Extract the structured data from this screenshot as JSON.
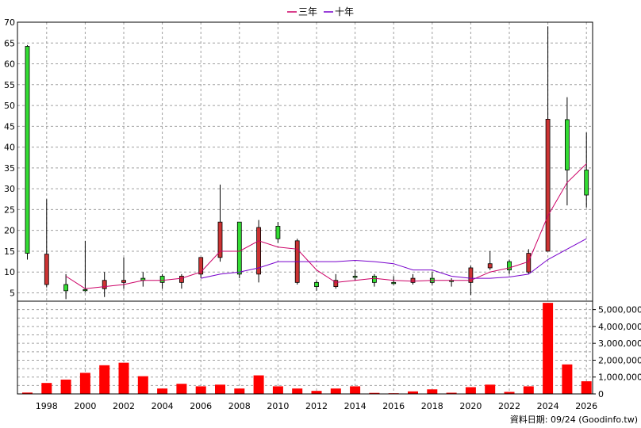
{
  "legend": [
    {
      "label": "三年",
      "color": "#cc0066"
    },
    {
      "label": "十年",
      "color": "#7700cc"
    }
  ],
  "credit": "資料日期: 09/24  (Goodinfo.tw)",
  "chart_data": [
    {
      "type": "candlestick",
      "ylim": [
        3,
        70
      ],
      "y_ticks": [
        5,
        10,
        15,
        20,
        25,
        30,
        35,
        40,
        45,
        50,
        55,
        60,
        65,
        70
      ],
      "grid": true,
      "legend_position": "top-center",
      "x_ticks": [
        1998,
        2000,
        2002,
        2004,
        2006,
        2008,
        2010,
        2012,
        2014,
        2016,
        2018,
        2020,
        2022,
        2024,
        2026
      ],
      "candles": [
        {
          "year": 1997,
          "open": 14.5,
          "close": 64.2,
          "high": 64.5,
          "low": 13.0
        },
        {
          "year": 1998,
          "open": 14.3,
          "close": 7.0,
          "high": 27.5,
          "low": 6.3
        },
        {
          "year": 1999,
          "open": 5.5,
          "close": 7.0,
          "high": 9.5,
          "low": 3.5
        },
        {
          "year": 2000,
          "open": 5.8,
          "close": 5.8,
          "high": 17.5,
          "low": 5.2
        },
        {
          "year": 2001,
          "open": 8.0,
          "close": 6.0,
          "high": 10.0,
          "low": 4.0
        },
        {
          "year": 2002,
          "open": 8.0,
          "close": 7.5,
          "high": 13.5,
          "low": 6.0
        },
        {
          "year": 2003,
          "open": 8.0,
          "close": 8.5,
          "high": 10.0,
          "low": 6.5
        },
        {
          "year": 2004,
          "open": 7.5,
          "close": 9.0,
          "high": 9.5,
          "low": 6.0
        },
        {
          "year": 2005,
          "open": 9.0,
          "close": 7.5,
          "high": 9.5,
          "low": 6.0
        },
        {
          "year": 2006,
          "open": 13.5,
          "close": 9.5,
          "high": 13.5,
          "low": 8.5
        },
        {
          "year": 2007,
          "open": 22.0,
          "close": 13.5,
          "high": 31.0,
          "low": 12.5
        },
        {
          "year": 2008,
          "open": 9.5,
          "close": 22.0,
          "high": 22.0,
          "low": 8.5
        },
        {
          "year": 2009,
          "open": 20.7,
          "close": 9.5,
          "high": 22.5,
          "low": 7.5
        },
        {
          "year": 2010,
          "open": 18.0,
          "close": 21.0,
          "high": 22.0,
          "low": 17.0
        },
        {
          "year": 2011,
          "open": 17.5,
          "close": 7.5,
          "high": 18.0,
          "low": 7.0
        },
        {
          "year": 2012,
          "open": 6.5,
          "close": 7.5,
          "high": 8.0,
          "low": 5.5
        },
        {
          "year": 2013,
          "open": 8.0,
          "close": 6.5,
          "high": 9.5,
          "low": 6.0
        },
        {
          "year": 2014,
          "open": 9.0,
          "close": 9.0,
          "high": 10.5,
          "low": 8.0
        },
        {
          "year": 2015,
          "open": 7.5,
          "close": 9.0,
          "high": 9.5,
          "low": 6.5
        },
        {
          "year": 2016,
          "open": 7.5,
          "close": 7.5,
          "high": 9.0,
          "low": 7.0
        },
        {
          "year": 2017,
          "open": 8.5,
          "close": 7.5,
          "high": 9.5,
          "low": 7.0
        },
        {
          "year": 2018,
          "open": 7.5,
          "close": 8.5,
          "high": 10.0,
          "low": 7.0
        },
        {
          "year": 2019,
          "open": 8.0,
          "close": 8.0,
          "high": 8.5,
          "low": 6.5
        },
        {
          "year": 2020,
          "open": 11.0,
          "close": 7.5,
          "high": 11.5,
          "low": 4.5
        },
        {
          "year": 2021,
          "open": 12.0,
          "close": 11.0,
          "high": 15.0,
          "low": 10.5
        },
        {
          "year": 2022,
          "open": 10.5,
          "close": 12.5,
          "high": 13.0,
          "low": 9.5
        },
        {
          "year": 2023,
          "open": 14.5,
          "close": 10.0,
          "high": 15.5,
          "low": 9.5
        },
        {
          "year": 2024,
          "open": 46.7,
          "close": 15.0,
          "high": 69.0,
          "low": 15.0
        },
        {
          "year": 2025,
          "open": 34.5,
          "close": 46.6,
          "high": 52.0,
          "low": 26.0
        },
        {
          "year": 2026,
          "open": 28.5,
          "close": 34.5,
          "high": 43.5,
          "low": 25.5
        }
      ],
      "up_color": "#33dd33",
      "down_color": "#cc3333",
      "series": [
        {
          "name": "三年",
          "color": "#cc0066",
          "points": [
            [
              1999,
              9.0
            ],
            [
              2000,
              6.0
            ],
            [
              2001,
              6.5
            ],
            [
              2002,
              7.0
            ],
            [
              2003,
              8.0
            ],
            [
              2004,
              8.0
            ],
            [
              2005,
              8.5
            ],
            [
              2006,
              10.0
            ],
            [
              2007,
              15.0
            ],
            [
              2008,
              15.0
            ],
            [
              2009,
              17.5
            ],
            [
              2010,
              16.0
            ],
            [
              2011,
              15.5
            ],
            [
              2012,
              10.5
            ],
            [
              2013,
              7.5
            ],
            [
              2014,
              8.0
            ],
            [
              2015,
              8.5
            ],
            [
              2016,
              8.0
            ],
            [
              2017,
              7.8
            ],
            [
              2018,
              8.0
            ],
            [
              2019,
              8.0
            ],
            [
              2020,
              8.0
            ],
            [
              2021,
              10.0
            ],
            [
              2022,
              11.0
            ],
            [
              2023,
              12.5
            ],
            [
              2024,
              23.5
            ],
            [
              2025,
              31.5
            ],
            [
              2026,
              36.0
            ]
          ]
        },
        {
          "name": "十年",
          "color": "#7700cc",
          "points": [
            [
              2006,
              8.5
            ],
            [
              2007,
              9.5
            ],
            [
              2008,
              10.0
            ],
            [
              2009,
              11.0
            ],
            [
              2010,
              12.5
            ],
            [
              2011,
              12.5
            ],
            [
              2012,
              12.5
            ],
            [
              2013,
              12.5
            ],
            [
              2014,
              12.8
            ],
            [
              2015,
              12.5
            ],
            [
              2016,
              12.0
            ],
            [
              2017,
              10.5
            ],
            [
              2018,
              10.5
            ],
            [
              2019,
              9.0
            ],
            [
              2020,
              8.5
            ],
            [
              2021,
              8.5
            ],
            [
              2022,
              8.8
            ],
            [
              2023,
              9.5
            ],
            [
              2024,
              13.0
            ],
            [
              2025,
              15.5
            ],
            [
              2026,
              18.0
            ]
          ]
        }
      ]
    },
    {
      "type": "bar",
      "ylim": [
        0,
        5500000
      ],
      "y_ticks": [
        0,
        1000000,
        2000000,
        3000000,
        4000000,
        5000000
      ],
      "y_tick_labels": [
        "0",
        "1,000,000",
        "2,000,000",
        "3,000,000",
        "4,000,000",
        "5,000,000"
      ],
      "grid": true,
      "bar_color": "#ff0000",
      "years": [
        1997,
        1998,
        1999,
        2000,
        2001,
        2002,
        2003,
        2004,
        2005,
        2006,
        2007,
        2008,
        2009,
        2010,
        2011,
        2012,
        2013,
        2014,
        2015,
        2016,
        2017,
        2018,
        2019,
        2020,
        2021,
        2022,
        2023,
        2024,
        2025,
        2026
      ],
      "values": [
        80000,
        650000,
        850000,
        1250000,
        1700000,
        1850000,
        1050000,
        320000,
        600000,
        450000,
        550000,
        320000,
        1100000,
        450000,
        320000,
        180000,
        320000,
        450000,
        60000,
        40000,
        150000,
        270000,
        70000,
        400000,
        550000,
        120000,
        450000,
        5400000,
        1750000,
        750000
      ]
    }
  ]
}
